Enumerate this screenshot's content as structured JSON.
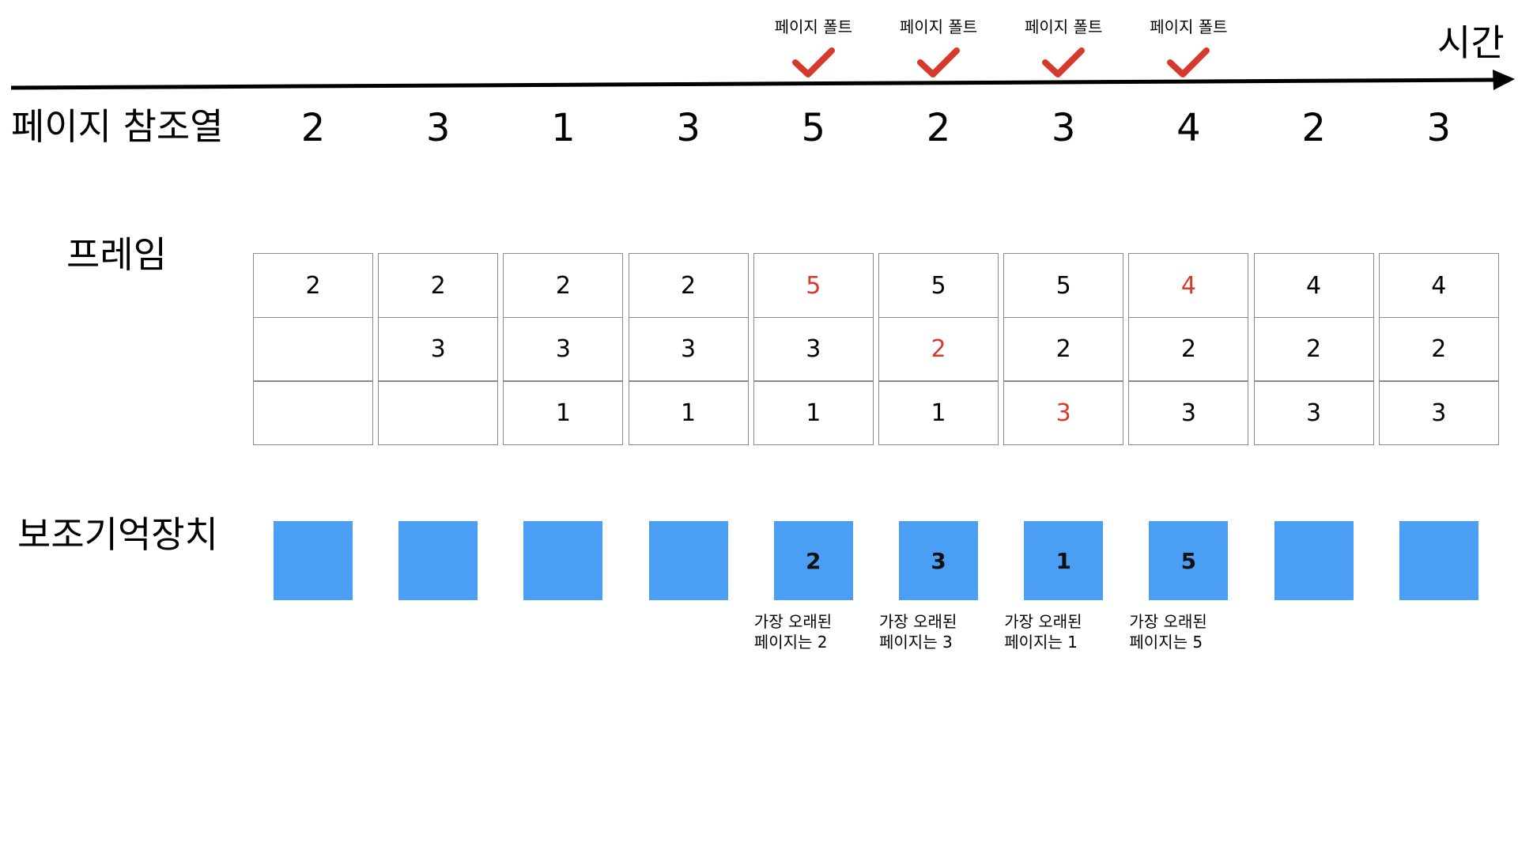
{
  "time_axis_label": "시간",
  "reference_label": "페이지 참조열",
  "frame_label": "프레임",
  "storage_label": "보조기억장치",
  "reference_string": [
    "2",
    "3",
    "1",
    "3",
    "5",
    "2",
    "3",
    "4",
    "2",
    "3"
  ],
  "page_faults": [
    {
      "step": 4,
      "label": "페이지 폴트"
    },
    {
      "step": 5,
      "label": "페이지 폴트"
    },
    {
      "step": 6,
      "label": "페이지 폴트"
    },
    {
      "step": 7,
      "label": "페이지 폴트"
    }
  ],
  "frames": [
    [
      {
        "v": "2"
      },
      {
        "v": ""
      },
      {
        "v": ""
      }
    ],
    [
      {
        "v": "2"
      },
      {
        "v": "3"
      },
      {
        "v": ""
      }
    ],
    [
      {
        "v": "2"
      },
      {
        "v": "3"
      },
      {
        "v": "1"
      }
    ],
    [
      {
        "v": "2"
      },
      {
        "v": "3"
      },
      {
        "v": "1"
      }
    ],
    [
      {
        "v": "5",
        "hl": true
      },
      {
        "v": "3"
      },
      {
        "v": "1"
      }
    ],
    [
      {
        "v": "5"
      },
      {
        "v": "2",
        "hl": true
      },
      {
        "v": "1"
      }
    ],
    [
      {
        "v": "5"
      },
      {
        "v": "2"
      },
      {
        "v": "3",
        "hl": true
      }
    ],
    [
      {
        "v": "4",
        "hl": true
      },
      {
        "v": "2"
      },
      {
        "v": "3"
      }
    ],
    [
      {
        "v": "4"
      },
      {
        "v": "2"
      },
      {
        "v": "3"
      }
    ],
    [
      {
        "v": "4"
      },
      {
        "v": "2"
      },
      {
        "v": "3"
      }
    ]
  ],
  "storage": [
    {
      "page": ""
    },
    {
      "page": ""
    },
    {
      "page": ""
    },
    {
      "page": ""
    },
    {
      "page": "2",
      "note": "가장 오래된\n페이지는 2"
    },
    {
      "page": "3",
      "note": "가장 오래된\n페이지는 3"
    },
    {
      "page": "1",
      "note": "가장 오래된\n페이지는 1"
    },
    {
      "page": "5",
      "note": "가장 오래된\n페이지는 5"
    },
    {
      "page": ""
    },
    {
      "page": ""
    }
  ],
  "colors": {
    "highlight": "#d63a2c",
    "storage_box": "#4a9ff5",
    "check": "#d63a2c"
  }
}
